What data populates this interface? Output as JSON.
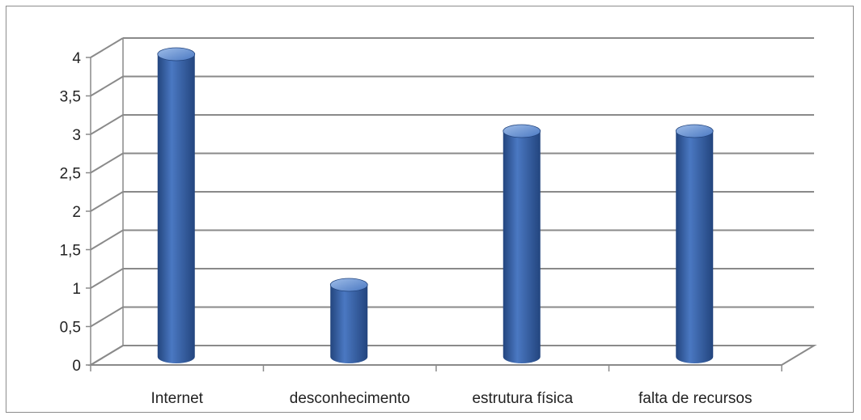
{
  "chart_data": {
    "type": "bar",
    "categories": [
      "Internet",
      "desconhecimento",
      "estrutura física",
      "falta de recursos"
    ],
    "values": [
      4,
      1,
      3,
      3
    ],
    "title": "",
    "xlabel": "",
    "ylabel": "",
    "ylim": [
      0,
      4
    ],
    "yticks": [
      "0",
      "0,5",
      "1",
      "1,5",
      "2",
      "2,5",
      "3",
      "3,5",
      "4"
    ],
    "grid": true,
    "legend": "none",
    "bar_color": "#4a78c2",
    "bar_color_dark": "#23457e",
    "bar_color_light": "#9fbde8",
    "grid_color": "#8a8a8a"
  }
}
